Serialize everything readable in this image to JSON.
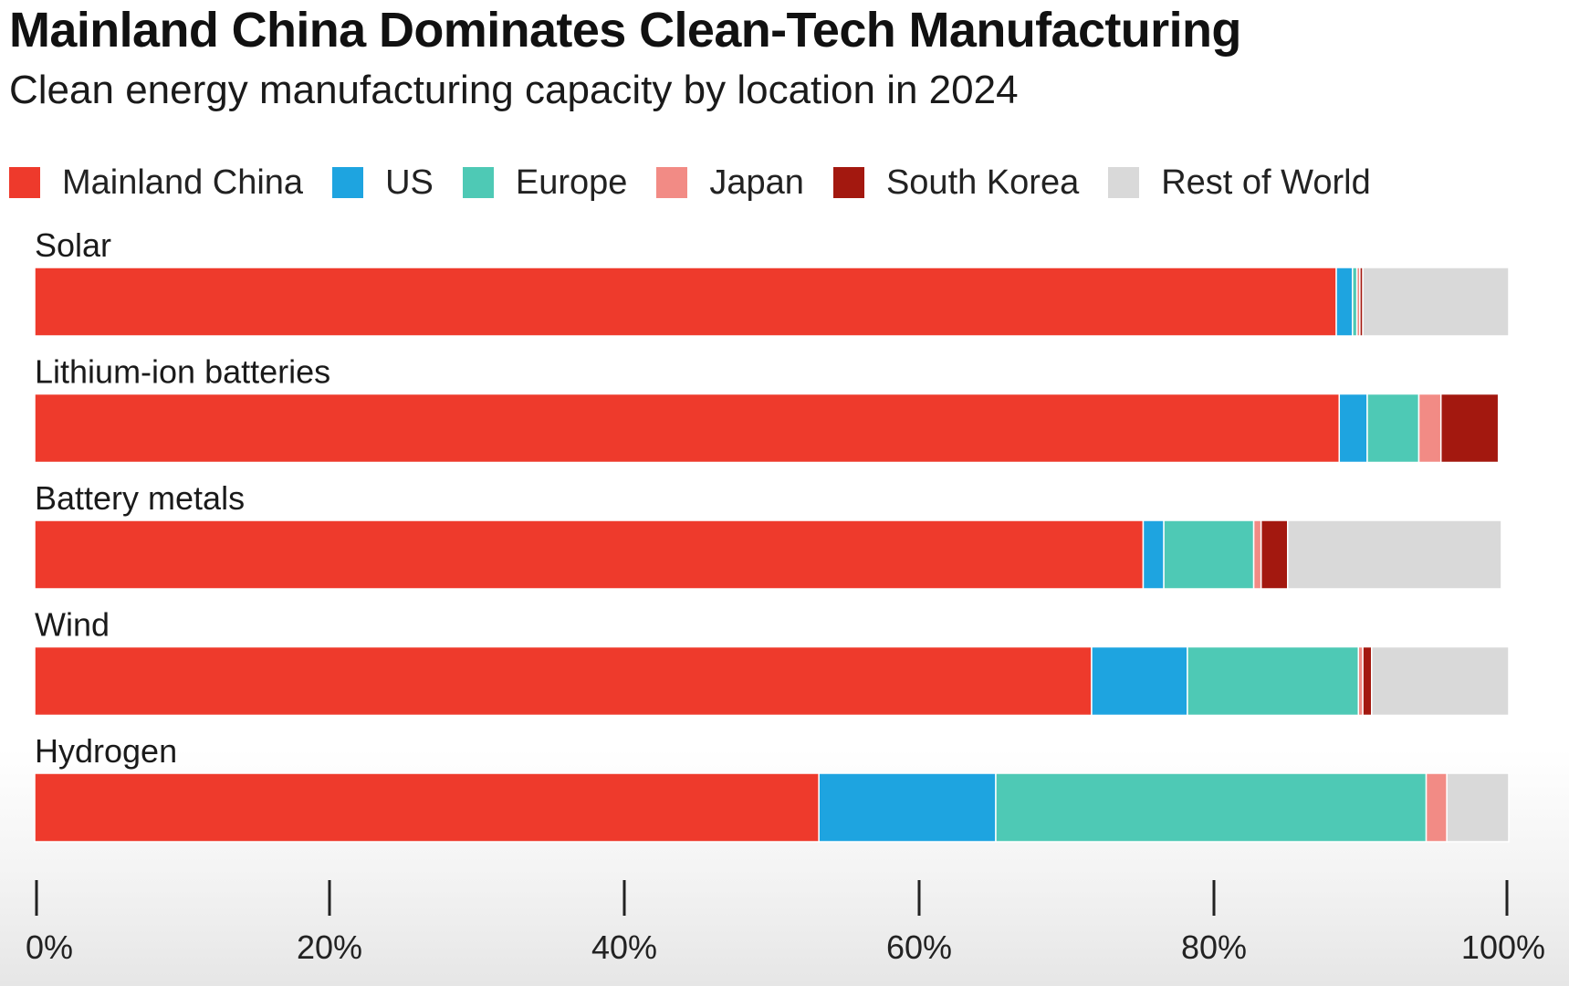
{
  "chart_data": {
    "type": "bar",
    "orientation": "horizontal",
    "stacked": true,
    "title": "Mainland China Dominates Clean-Tech Manufacturing",
    "subtitle": "Clean energy manufacturing capacity by location in 2024",
    "categories": [
      "Solar",
      "Lithium-ion batteries",
      "Battery metals",
      "Wind",
      "Hydrogen"
    ],
    "series": [
      {
        "name": "Mainland China",
        "color": "#ee3a2c",
        "values": [
          88.3,
          88.5,
          75.2,
          71.7,
          53.2
        ]
      },
      {
        "name": "US",
        "color": "#1ea4e0",
        "values": [
          1.1,
          1.9,
          1.4,
          6.5,
          12.0
        ]
      },
      {
        "name": "Europe",
        "color": "#4ec9b5",
        "values": [
          0.3,
          3.5,
          6.1,
          11.6,
          29.2
        ]
      },
      {
        "name": "Japan",
        "color": "#f28b85",
        "values": [
          0.2,
          1.5,
          0.5,
          0.3,
          1.4
        ]
      },
      {
        "name": "South Korea",
        "color": "#a3180f",
        "values": [
          0.2,
          3.9,
          1.8,
          0.6,
          0.0
        ]
      },
      {
        "name": "Rest of World",
        "color": "#d9d9d9",
        "values": [
          9.9,
          0.0,
          14.5,
          9.3,
          4.2
        ]
      }
    ],
    "xlim": [
      0,
      100
    ],
    "xticks": [
      0,
      20,
      40,
      60,
      80,
      100
    ],
    "xtick_labels": [
      "0%",
      "20%",
      "40%",
      "60%",
      "80%",
      "100%"
    ],
    "xlabel": "",
    "ylabel": "",
    "legend_position": "top-left",
    "grid": false
  }
}
